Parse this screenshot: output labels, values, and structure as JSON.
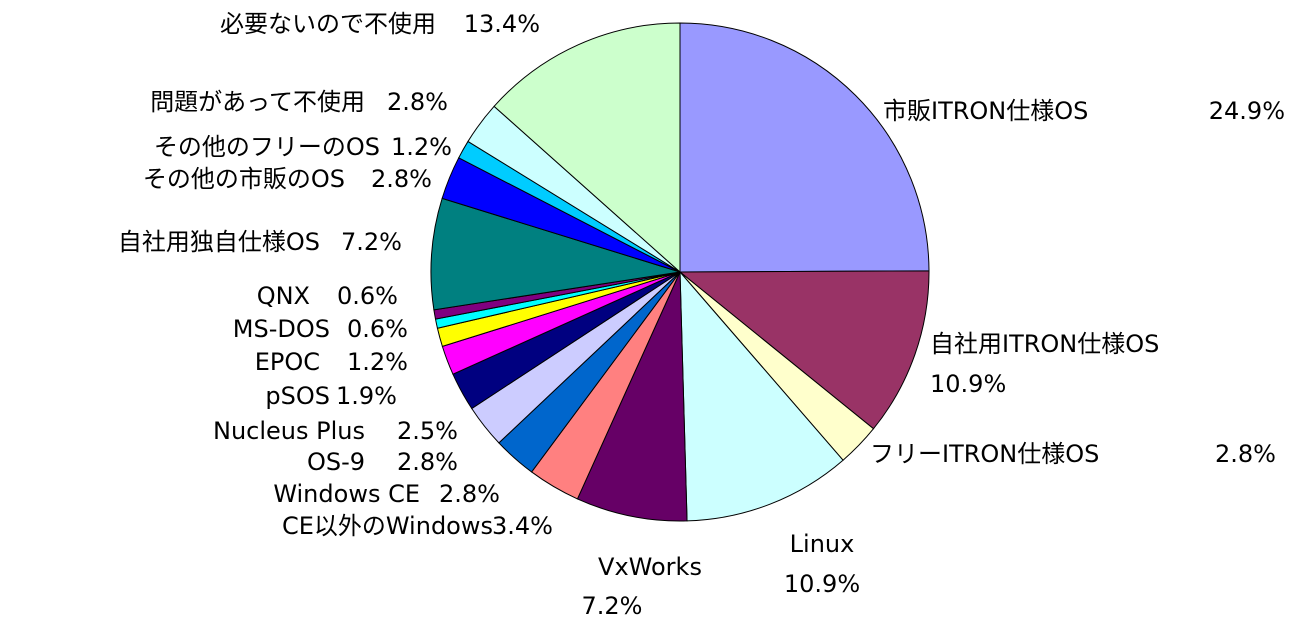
{
  "chart_data": {
    "type": "pie",
    "categories": [
      "市販ITRON仕様OS",
      "自社用ITRON仕様OS",
      "フリーITRON仕様OS",
      "Linux",
      "VxWorks",
      "CE以外のWindows",
      "Windows CE",
      "OS-9",
      "Nucleus Plus",
      "pSOS",
      "EPOC",
      "MS-DOS",
      "QNX",
      "自社用独自仕様OS",
      "その他の市販のOS",
      "その他のフリーのOS",
      "問題があって不使用",
      "必要ないので不使用"
    ],
    "values": [
      24.9,
      10.9,
      2.8,
      10.9,
      7.2,
      3.4,
      2.8,
      2.8,
      2.5,
      1.9,
      1.2,
      0.6,
      0.6,
      7.2,
      2.8,
      1.2,
      2.8,
      13.4
    ],
    "value_labels": [
      "24.9%",
      "10.9%",
      "2.8%",
      "10.9%",
      "7.2%",
      "3.4%",
      "2.8%",
      "2.8%",
      "2.5%",
      "1.9%",
      "1.2%",
      "0.6%",
      "0.6%",
      "7.2%",
      "2.8%",
      "1.2%",
      "2.8%",
      "13.4%"
    ],
    "colors": [
      "#9999ff",
      "#993366",
      "#ffffcc",
      "#ccffff",
      "#660066",
      "#ff8080",
      "#0066cc",
      "#ccccff",
      "#000080",
      "#ff00ff",
      "#ffff00",
      "#00ffff",
      "#800080",
      "#008080",
      "#0000ff",
      "#00ccff",
      "#ccffff",
      "#ccffcc"
    ]
  }
}
